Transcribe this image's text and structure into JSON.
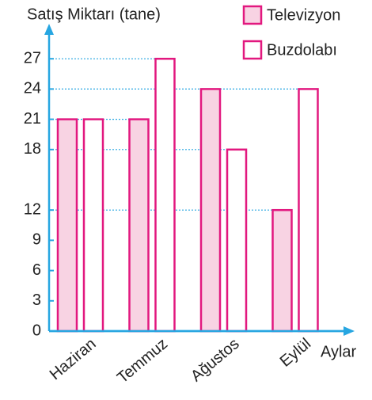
{
  "chart_data": {
    "type": "bar",
    "y_axis_label": "Satış Miktarı (tane)",
    "x_axis_label": "Aylar",
    "categories": [
      "Haziran",
      "Temmuz",
      "Ağustos",
      "Eylül"
    ],
    "series": [
      {
        "name": "Televizyon",
        "color": "#f8d3e3",
        "values": [
          21,
          21,
          24,
          12
        ]
      },
      {
        "name": "Buzdolabı",
        "color": "#ffffff",
        "values": [
          21,
          27,
          18,
          24
        ]
      }
    ],
    "ylim": [
      0,
      30
    ],
    "yticks": [
      0,
      3,
      6,
      9,
      12,
      18,
      21,
      24,
      27
    ],
    "grid": true
  }
}
